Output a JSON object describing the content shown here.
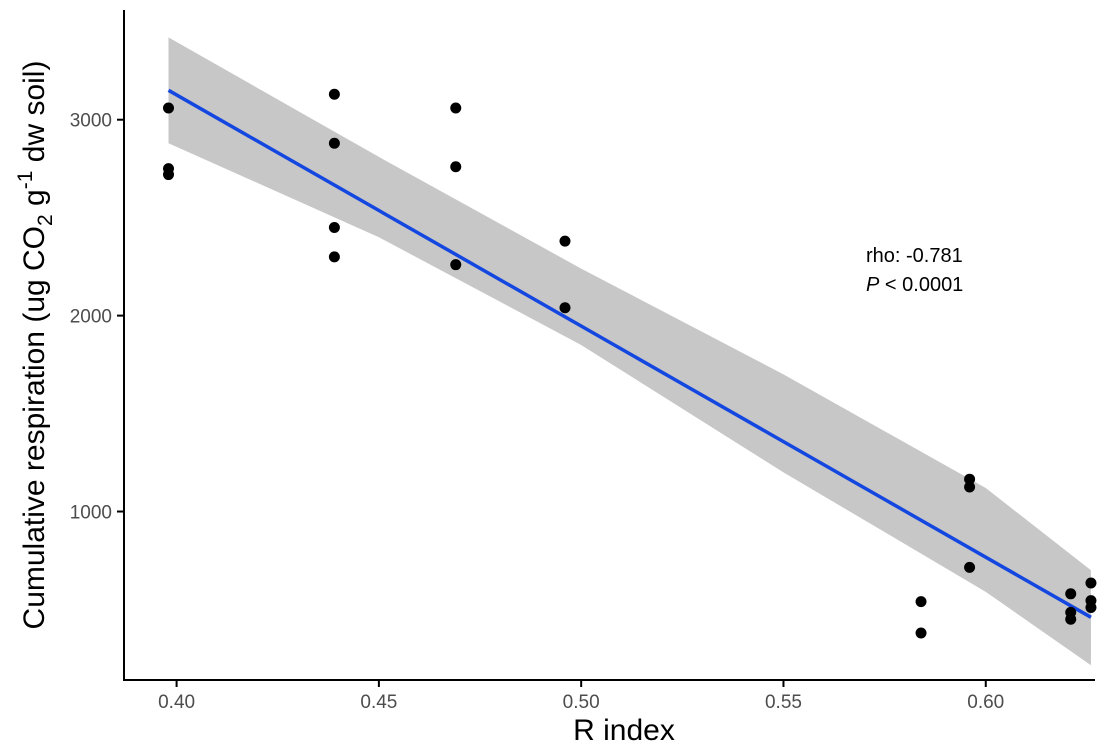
{
  "chart_data": {
    "type": "scatter",
    "title": "",
    "xlabel": "R index",
    "ylabel_parts": {
      "prefix": "Cumulative respiration (ug CO",
      "sub": "2",
      "mid": " g",
      "sup": "-1",
      "suffix": " dw soil)"
    },
    "xlim": [
      0.387,
      0.627
    ],
    "ylim": [
      140,
      3560
    ],
    "x_ticks": [
      0.4,
      0.45,
      0.5,
      0.55,
      0.6
    ],
    "x_tick_labels": [
      "0.40",
      "0.45",
      "0.50",
      "0.55",
      "0.60"
    ],
    "y_ticks": [
      1000,
      2000,
      3000
    ],
    "y_tick_labels": [
      "1000",
      "2000",
      "3000"
    ],
    "grid": false,
    "legend": "none",
    "points": [
      {
        "x": 0.398,
        "y": 3060
      },
      {
        "x": 0.398,
        "y": 2750
      },
      {
        "x": 0.398,
        "y": 2720
      },
      {
        "x": 0.439,
        "y": 3130
      },
      {
        "x": 0.439,
        "y": 2880
      },
      {
        "x": 0.439,
        "y": 2450
      },
      {
        "x": 0.439,
        "y": 2300
      },
      {
        "x": 0.469,
        "y": 3060
      },
      {
        "x": 0.469,
        "y": 2760
      },
      {
        "x": 0.469,
        "y": 2260
      },
      {
        "x": 0.496,
        "y": 2380
      },
      {
        "x": 0.496,
        "y": 2040
      },
      {
        "x": 0.584,
        "y": 540
      },
      {
        "x": 0.584,
        "y": 380
      },
      {
        "x": 0.596,
        "y": 1165
      },
      {
        "x": 0.596,
        "y": 1125
      },
      {
        "x": 0.596,
        "y": 715
      },
      {
        "x": 0.621,
        "y": 580
      },
      {
        "x": 0.621,
        "y": 485
      },
      {
        "x": 0.621,
        "y": 450
      },
      {
        "x": 0.626,
        "y": 635
      },
      {
        "x": 0.626,
        "y": 545
      },
      {
        "x": 0.626,
        "y": 510
      }
    ],
    "fit_line": {
      "x": [
        0.398,
        0.626
      ],
      "y": [
        3150,
        460
      ]
    },
    "confidence_band": {
      "x": [
        0.398,
        0.45,
        0.5,
        0.55,
        0.6,
        0.626
      ],
      "upper": [
        3420,
        2810,
        2240,
        1700,
        1120,
        700
      ],
      "lower": [
        2880,
        2400,
        1850,
        1200,
        590,
        215
      ]
    },
    "annotation": {
      "line1": "rho: -0.781",
      "p_symbol": "P",
      "p_rest": " < 0.0001"
    },
    "colors": {
      "points": "#000000",
      "line": "#1447e0",
      "band": "#bdbdbd",
      "axis": "#000000"
    }
  }
}
